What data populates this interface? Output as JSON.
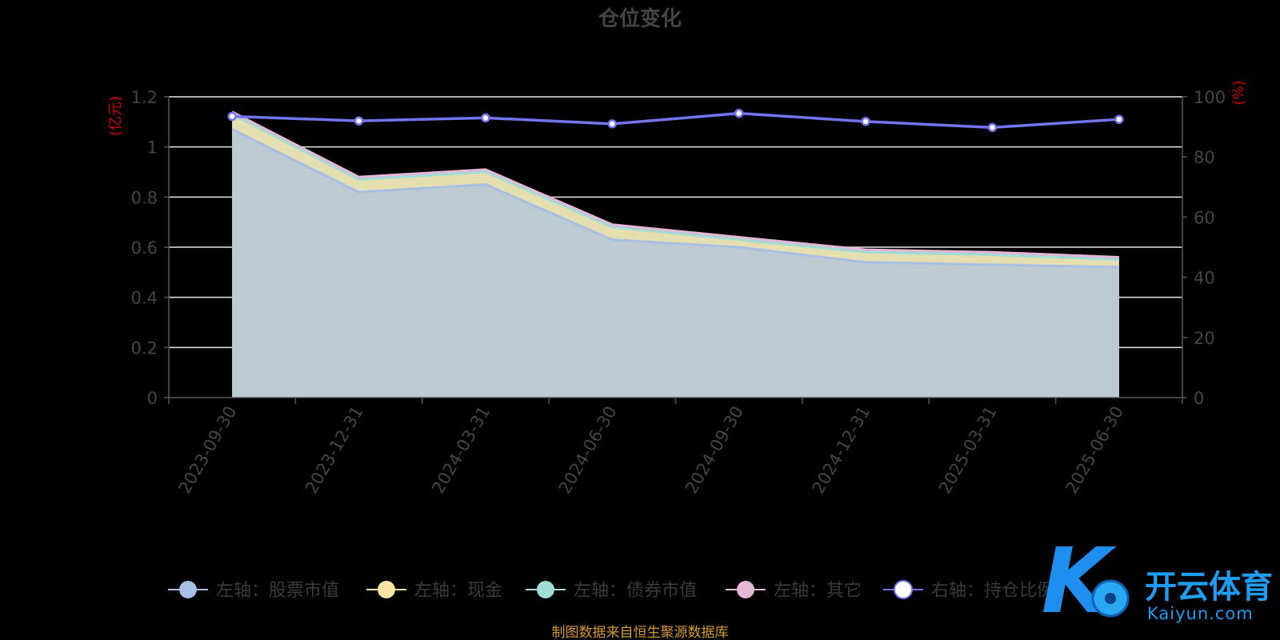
{
  "chart_data": {
    "type": "area",
    "title": "仓位变化",
    "left_unit": "(亿元)",
    "right_unit": "(%)",
    "categories": [
      "2023-09-30",
      "2023-12-31",
      "2024-03-31",
      "2024-06-30",
      "2024-09-30",
      "2024-12-31",
      "2025-03-31",
      "2025-06-30"
    ],
    "ylim_left": [
      0,
      1.2
    ],
    "yticks_left": [
      "0",
      "0.2",
      "0.4",
      "0.6",
      "0.8",
      "1",
      "1.2"
    ],
    "ylim_right": [
      0,
      100
    ],
    "yticks_right": [
      "0",
      "20",
      "40",
      "60",
      "80",
      "100"
    ],
    "stacked_series": [
      {
        "name": "左轴：股票市值",
        "color": "#a7bfe4",
        "values": [
          1.07,
          0.82,
          0.85,
          0.63,
          0.6,
          0.54,
          0.53,
          0.52
        ]
      },
      {
        "name": "左轴：现金",
        "color": "#fbe6a4",
        "values": [
          0.06,
          0.05,
          0.05,
          0.05,
          0.03,
          0.04,
          0.04,
          0.03
        ]
      },
      {
        "name": "左轴：债券市值",
        "color": "#a0dcd8",
        "values": [
          0,
          0,
          0,
          0,
          0,
          0,
          0,
          0
        ]
      },
      {
        "name": "左轴：其它",
        "color": "#e6b8d8",
        "values": [
          0.01,
          0.01,
          0.01,
          0.01,
          0.01,
          0.01,
          0.01,
          0.01
        ]
      }
    ],
    "line_series": {
      "name": "右轴：持仓比例",
      "axis": "right",
      "color": "#7474f0",
      "values": [
        93.5,
        92.0,
        93.0,
        91.0,
        94.5,
        91.8,
        89.8,
        92.5
      ]
    },
    "grid": true,
    "legend_position": "bottom"
  },
  "footer": "制图数据来自恒生聚源数据库",
  "watermark": {
    "cn": "开云体育",
    "en": "Kaiyun.com",
    "logo_letter": "K"
  }
}
